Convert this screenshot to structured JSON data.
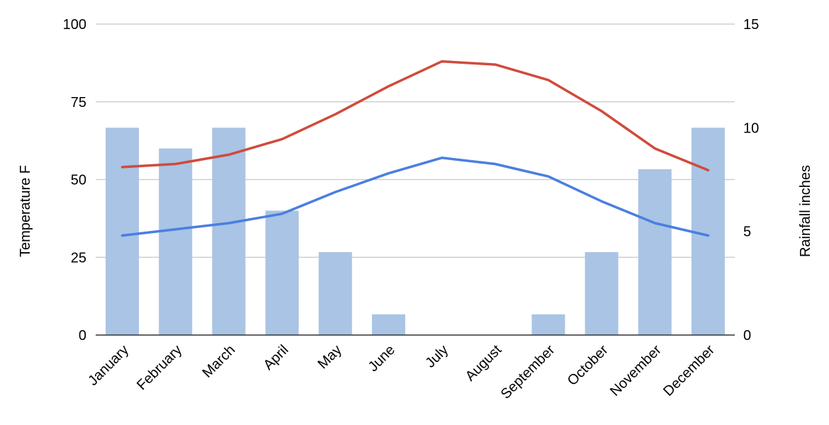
{
  "chart_data": {
    "type": "bar",
    "title": "",
    "categories": [
      "January",
      "February",
      "March",
      "April",
      "May",
      "June",
      "July",
      "August",
      "September",
      "October",
      "November",
      "December"
    ],
    "left_axis": {
      "label": "Temperature F",
      "ylim": [
        0,
        100
      ],
      "ticks": [
        0,
        25,
        50,
        75,
        100
      ]
    },
    "right_axis": {
      "label": "Rainfall inches",
      "ylim": [
        0,
        15
      ],
      "ticks": [
        0,
        5,
        10,
        15
      ]
    },
    "grid": true,
    "legend": "none",
    "series": [
      {
        "kind": "bar",
        "axis": "right",
        "color": "#a9c4e4",
        "values": [
          10,
          9,
          10,
          6,
          4,
          1,
          0,
          0,
          1,
          4,
          8,
          10
        ]
      },
      {
        "kind": "line",
        "axis": "left",
        "color": "#d04a3c",
        "values": [
          54,
          55,
          58,
          63,
          71,
          80,
          88,
          87,
          82,
          72,
          60,
          53
        ]
      },
      {
        "kind": "line",
        "axis": "left",
        "color": "#4a7fe0",
        "values": [
          32,
          34,
          36,
          39,
          46,
          52,
          57,
          55,
          51,
          43,
          36,
          32
        ]
      }
    ]
  }
}
